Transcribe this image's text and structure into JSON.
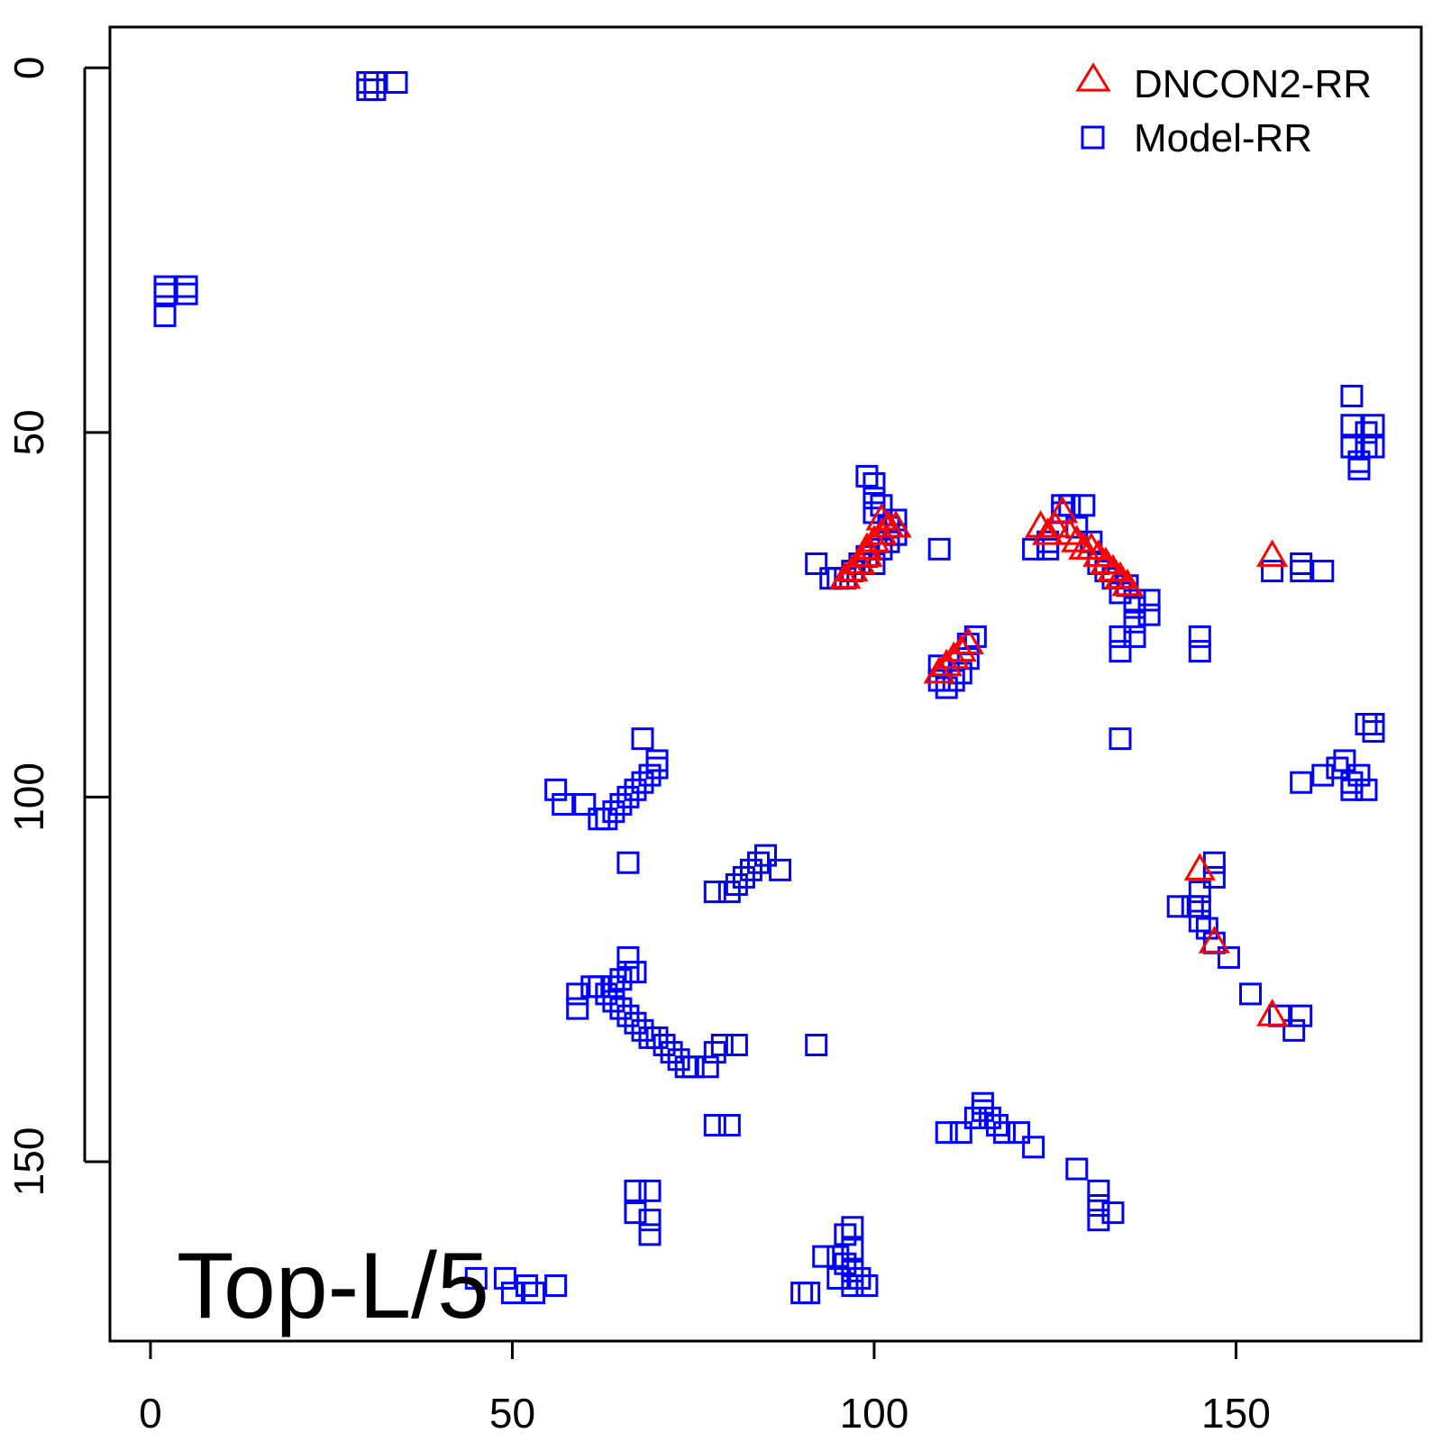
{
  "chart_data": {
    "type": "scatter",
    "title": "",
    "xlabel": "",
    "ylabel": "",
    "xlim": [
      -5.6,
      175.6
    ],
    "ylim": [
      174.6,
      -5.6
    ],
    "y_axis_reversed": true,
    "grid": false,
    "legend_position": "top-right",
    "annotation": "Top-L/5",
    "x_ticks": [
      0,
      50,
      100,
      150
    ],
    "y_ticks": [
      0,
      50,
      100,
      150
    ],
    "series": [
      {
        "name": "DNCON2-RR",
        "marker": "triangle",
        "color": "#ff0000",
        "points": [
          [
            96,
            70
          ],
          [
            97,
            69
          ],
          [
            98,
            68
          ],
          [
            99,
            67
          ],
          [
            99,
            66
          ],
          [
            100,
            65
          ],
          [
            101,
            64
          ],
          [
            102,
            63
          ],
          [
            101,
            62
          ],
          [
            103,
            63
          ],
          [
            123,
            63
          ],
          [
            124,
            64
          ],
          [
            125,
            63
          ],
          [
            126,
            61
          ],
          [
            127,
            64
          ],
          [
            128,
            65
          ],
          [
            129,
            66
          ],
          [
            130,
            66
          ],
          [
            131,
            67
          ],
          [
            132,
            68
          ],
          [
            133,
            69
          ],
          [
            134,
            70
          ],
          [
            135,
            71
          ],
          [
            109,
            83
          ],
          [
            110,
            82
          ],
          [
            111,
            81
          ],
          [
            112,
            80
          ],
          [
            113,
            79
          ],
          [
            155,
            67
          ],
          [
            145,
            110
          ],
          [
            147,
            120
          ],
          [
            155,
            130
          ]
        ]
      },
      {
        "name": "Model-RR",
        "marker": "square",
        "color": "#0000ff",
        "points": [
          [
            30,
            2
          ],
          [
            30,
            3
          ],
          [
            31,
            2
          ],
          [
            31,
            3
          ],
          [
            34,
            2
          ],
          [
            2,
            30
          ],
          [
            2,
            31
          ],
          [
            2,
            34
          ],
          [
            5,
            30
          ],
          [
            5,
            31
          ],
          [
            166,
            45
          ],
          [
            166,
            49
          ],
          [
            166,
            52
          ],
          [
            167,
            54
          ],
          [
            168,
            50
          ],
          [
            168,
            52
          ],
          [
            169,
            49
          ],
          [
            169,
            52
          ],
          [
            167,
            55
          ],
          [
            99,
            56
          ],
          [
            100,
            57
          ],
          [
            100,
            59
          ],
          [
            100,
            61
          ],
          [
            101,
            60
          ],
          [
            102,
            63
          ],
          [
            103,
            62
          ],
          [
            103,
            64
          ],
          [
            109,
            66
          ],
          [
            92,
            68
          ],
          [
            94,
            70
          ],
          [
            95,
            70
          ],
          [
            97,
            69
          ],
          [
            98,
            68
          ],
          [
            99,
            67
          ],
          [
            100,
            68
          ],
          [
            101,
            66
          ],
          [
            102,
            65
          ],
          [
            103,
            64
          ],
          [
            96,
            70
          ],
          [
            122,
            66
          ],
          [
            124,
            65
          ],
          [
            124,
            66
          ],
          [
            126,
            60
          ],
          [
            127,
            60
          ],
          [
            129,
            60
          ],
          [
            126,
            61
          ],
          [
            128,
            63
          ],
          [
            130,
            65
          ],
          [
            131,
            68
          ],
          [
            132,
            69
          ],
          [
            133,
            70
          ],
          [
            134,
            72
          ],
          [
            135,
            71
          ],
          [
            136,
            73
          ],
          [
            136,
            74
          ],
          [
            138,
            73
          ],
          [
            138,
            75
          ],
          [
            136,
            76
          ],
          [
            134,
            78
          ],
          [
            134,
            80
          ],
          [
            136,
            78
          ],
          [
            134,
            92
          ],
          [
            145,
            78
          ],
          [
            145,
            80
          ],
          [
            155,
            69
          ],
          [
            159,
            69
          ],
          [
            159,
            68
          ],
          [
            162,
            69
          ],
          [
            109,
            82
          ],
          [
            109,
            84
          ],
          [
            110,
            85
          ],
          [
            111,
            84
          ],
          [
            112,
            83
          ],
          [
            113,
            81
          ],
          [
            113,
            79
          ],
          [
            114,
            78
          ],
          [
            168,
            90
          ],
          [
            169,
            90
          ],
          [
            169,
            91
          ],
          [
            162,
            97
          ],
          [
            164,
            96
          ],
          [
            165,
            95
          ],
          [
            166,
            98
          ],
          [
            167,
            97
          ],
          [
            168,
            99
          ],
          [
            166,
            99
          ],
          [
            159,
            98
          ],
          [
            56,
            99
          ],
          [
            57,
            101
          ],
          [
            60,
            101
          ],
          [
            62,
            103
          ],
          [
            63,
            103
          ],
          [
            64,
            102
          ],
          [
            65,
            101
          ],
          [
            66,
            100
          ],
          [
            67,
            99
          ],
          [
            68,
            98
          ],
          [
            69,
            97
          ],
          [
            70,
            96
          ],
          [
            70,
            95
          ],
          [
            68,
            92
          ],
          [
            66,
            109
          ],
          [
            78,
            113
          ],
          [
            80,
            113
          ],
          [
            81,
            112
          ],
          [
            82,
            111
          ],
          [
            83,
            110
          ],
          [
            84,
            109
          ],
          [
            85,
            108
          ],
          [
            87,
            110
          ],
          [
            145,
            113
          ],
          [
            145,
            115
          ],
          [
            145,
            117
          ],
          [
            146,
            118
          ],
          [
            147,
            120
          ],
          [
            149,
            122
          ],
          [
            147,
            109
          ],
          [
            147,
            111
          ],
          [
            142,
            115
          ],
          [
            144,
            115
          ],
          [
            152,
            127
          ],
          [
            156,
            130
          ],
          [
            159,
            130
          ],
          [
            158,
            132
          ],
          [
            59,
            127
          ],
          [
            59,
            129
          ],
          [
            61,
            126
          ],
          [
            62,
            126
          ],
          [
            63,
            127
          ],
          [
            64,
            126
          ],
          [
            65,
            125
          ],
          [
            66,
            124
          ],
          [
            67,
            124
          ],
          [
            66,
            122
          ],
          [
            64,
            128
          ],
          [
            65,
            129
          ],
          [
            66,
            130
          ],
          [
            67,
            131
          ],
          [
            68,
            132
          ],
          [
            69,
            133
          ],
          [
            70,
            133
          ],
          [
            71,
            134
          ],
          [
            72,
            135
          ],
          [
            73,
            136
          ],
          [
            74,
            137
          ],
          [
            75,
            137
          ],
          [
            77,
            137
          ],
          [
            78,
            135
          ],
          [
            79,
            134
          ],
          [
            81,
            134
          ],
          [
            92,
            134
          ],
          [
            78,
            145
          ],
          [
            80,
            145
          ],
          [
            110,
            146
          ],
          [
            112,
            146
          ],
          [
            114,
            144
          ],
          [
            115,
            142
          ],
          [
            115,
            143
          ],
          [
            116,
            144
          ],
          [
            117,
            145
          ],
          [
            118,
            146
          ],
          [
            120,
            146
          ],
          [
            122,
            148
          ],
          [
            128,
            151
          ],
          [
            131,
            154
          ],
          [
            131,
            156
          ],
          [
            131,
            158
          ],
          [
            133,
            157
          ],
          [
            67,
            154
          ],
          [
            69,
            154
          ],
          [
            67,
            157
          ],
          [
            69,
            158
          ],
          [
            69,
            160
          ],
          [
            45,
            166
          ],
          [
            49,
            166
          ],
          [
            50,
            168
          ],
          [
            52,
            167
          ],
          [
            53,
            168
          ],
          [
            56,
            167
          ],
          [
            90,
            168
          ],
          [
            91,
            168
          ],
          [
            93,
            163
          ],
          [
            95,
            163
          ],
          [
            96,
            164
          ],
          [
            97,
            162
          ],
          [
            97,
            165
          ],
          [
            98,
            166
          ],
          [
            99,
            167
          ],
          [
            97,
            167
          ],
          [
            96,
            160
          ],
          [
            97,
            159
          ],
          [
            95,
            166
          ]
        ]
      }
    ]
  }
}
